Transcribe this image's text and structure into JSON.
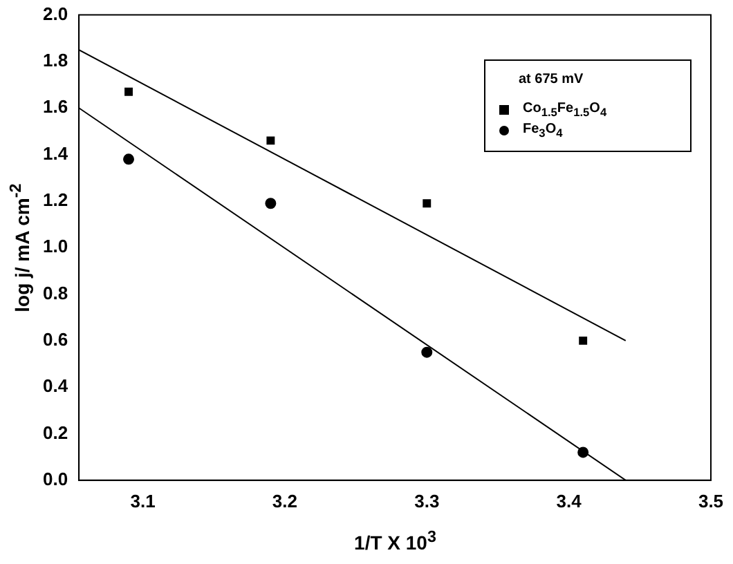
{
  "chart_data": {
    "type": "scatter",
    "xlabel": "1/T X 10$^{3}$",
    "ylabel": "log j/ mA cm$^{-2}$",
    "legend_title": "at 675 mV",
    "legend": "top right",
    "grid": false,
    "xlim": [
      3.055,
      3.5
    ],
    "xticks": [
      3.1,
      3.2,
      3.3,
      3.4,
      3.5
    ],
    "ylim": [
      0,
      2
    ],
    "yticks": [
      {
        "value": 0,
        "label": "0.0"
      },
      0.2,
      0.4,
      0.6,
      0.8,
      {
        "value": 1,
        "label": "1.0"
      },
      1.2,
      1.4,
      1.6,
      1.8,
      {
        "value": 2,
        "label": "2.0"
      }
    ],
    "series": [
      {
        "name": "Co$_{1.5}$Fe$_{1.5}$O$_{4}$",
        "color": "#000000",
        "marker": "square",
        "x": [
          3.09,
          3.19,
          3.3,
          3.41
        ],
        "values": [
          1.67,
          1.46,
          1.19,
          0.6
        ]
      },
      {
        "name": "Fe$_{3}$O$_{4}$",
        "color": "#000000",
        "marker": "circle",
        "x": [
          3.09,
          3.19,
          3.3,
          3.41
        ],
        "values": [
          1.38,
          1.19,
          0.55,
          0.12
        ]
      },
      {
        "type": "line",
        "color": "#000000",
        "marker": "none",
        "x": [
          3.055,
          3.44
        ],
        "values": [
          1.85,
          0.6
        ]
      },
      {
        "type": "line",
        "color": "#000000",
        "marker": "none",
        "x": [
          3.055,
          3.44
        ],
        "values": [
          1.6,
          0
        ]
      }
    ]
  }
}
